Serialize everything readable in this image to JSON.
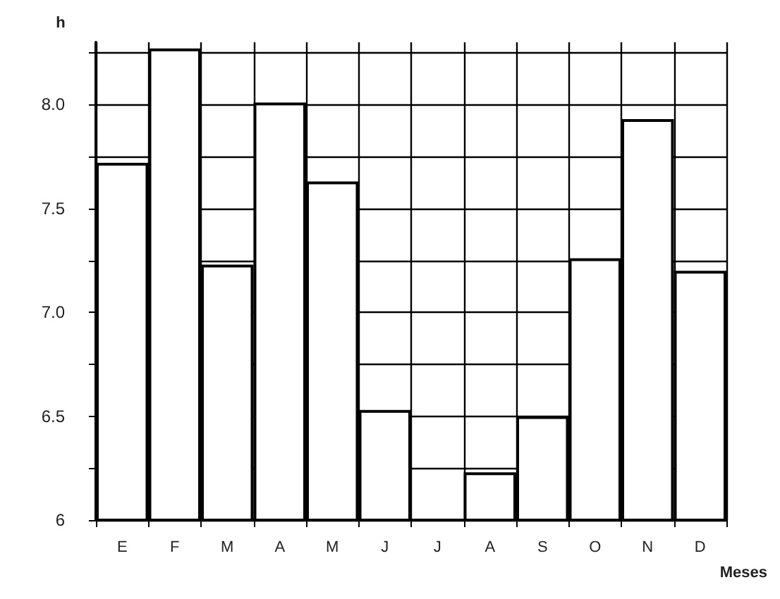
{
  "chart_data": {
    "type": "bar",
    "ylabel": "h",
    "xlabel": "Meses",
    "categories": [
      "E",
      "F",
      "M",
      "A",
      "M",
      "J",
      "J",
      "A",
      "S",
      "O",
      "N",
      "D"
    ],
    "values": [
      7.72,
      8.27,
      7.23,
      8.01,
      7.63,
      6.53,
      6.0,
      6.23,
      6.5,
      7.26,
      7.93,
      7.2
    ],
    "color": "#ffffff",
    "ylim": [
      6,
      8.3
    ],
    "yticks": [
      6,
      {
        "value": 6.25,
        "label": null
      },
      6.5,
      {
        "value": 6.75,
        "label": null
      },
      {
        "value": 7,
        "label": "7.0"
      },
      {
        "value": 7.25,
        "label": null
      },
      7.5,
      {
        "value": 7.75,
        "label": null
      },
      {
        "value": 8,
        "label": "8.0"
      },
      {
        "value": 8.25,
        "label": null
      }
    ],
    "grid": true
  }
}
